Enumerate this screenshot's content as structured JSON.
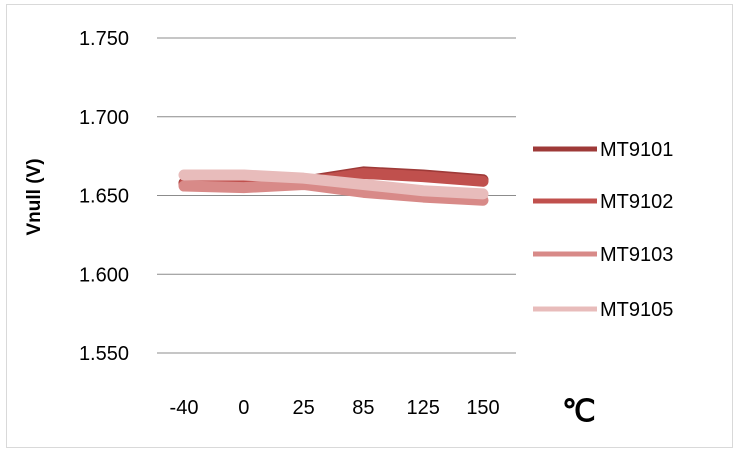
{
  "chart_data": {
    "type": "line",
    "title": "",
    "xlabel": "℃",
    "ylabel": "Vnull (V)",
    "categories": [
      "-40",
      "0",
      "25",
      "85",
      "125",
      "150"
    ],
    "ylim": [
      1.55,
      1.75
    ],
    "yticks": [
      "1.750",
      "1.700",
      "1.650",
      "1.600",
      "1.550"
    ],
    "grid": "horizontal",
    "legend": "right",
    "series": [
      {
        "name": "MT9101",
        "color": "#9e3a38",
        "values": [
          1.658,
          1.658,
          1.659,
          1.665,
          1.663,
          1.66
        ]
      },
      {
        "name": "MT9102",
        "color": "#c0504d",
        "values": [
          1.657,
          1.657,
          1.658,
          1.664,
          1.662,
          1.659
        ]
      },
      {
        "name": "MT9103",
        "color": "#d88a88",
        "values": [
          1.656,
          1.655,
          1.657,
          1.652,
          1.649,
          1.647
        ]
      },
      {
        "name": "MT9105",
        "color": "#e8bcbb",
        "values": [
          1.663,
          1.663,
          1.661,
          1.657,
          1.653,
          1.651
        ]
      }
    ]
  }
}
